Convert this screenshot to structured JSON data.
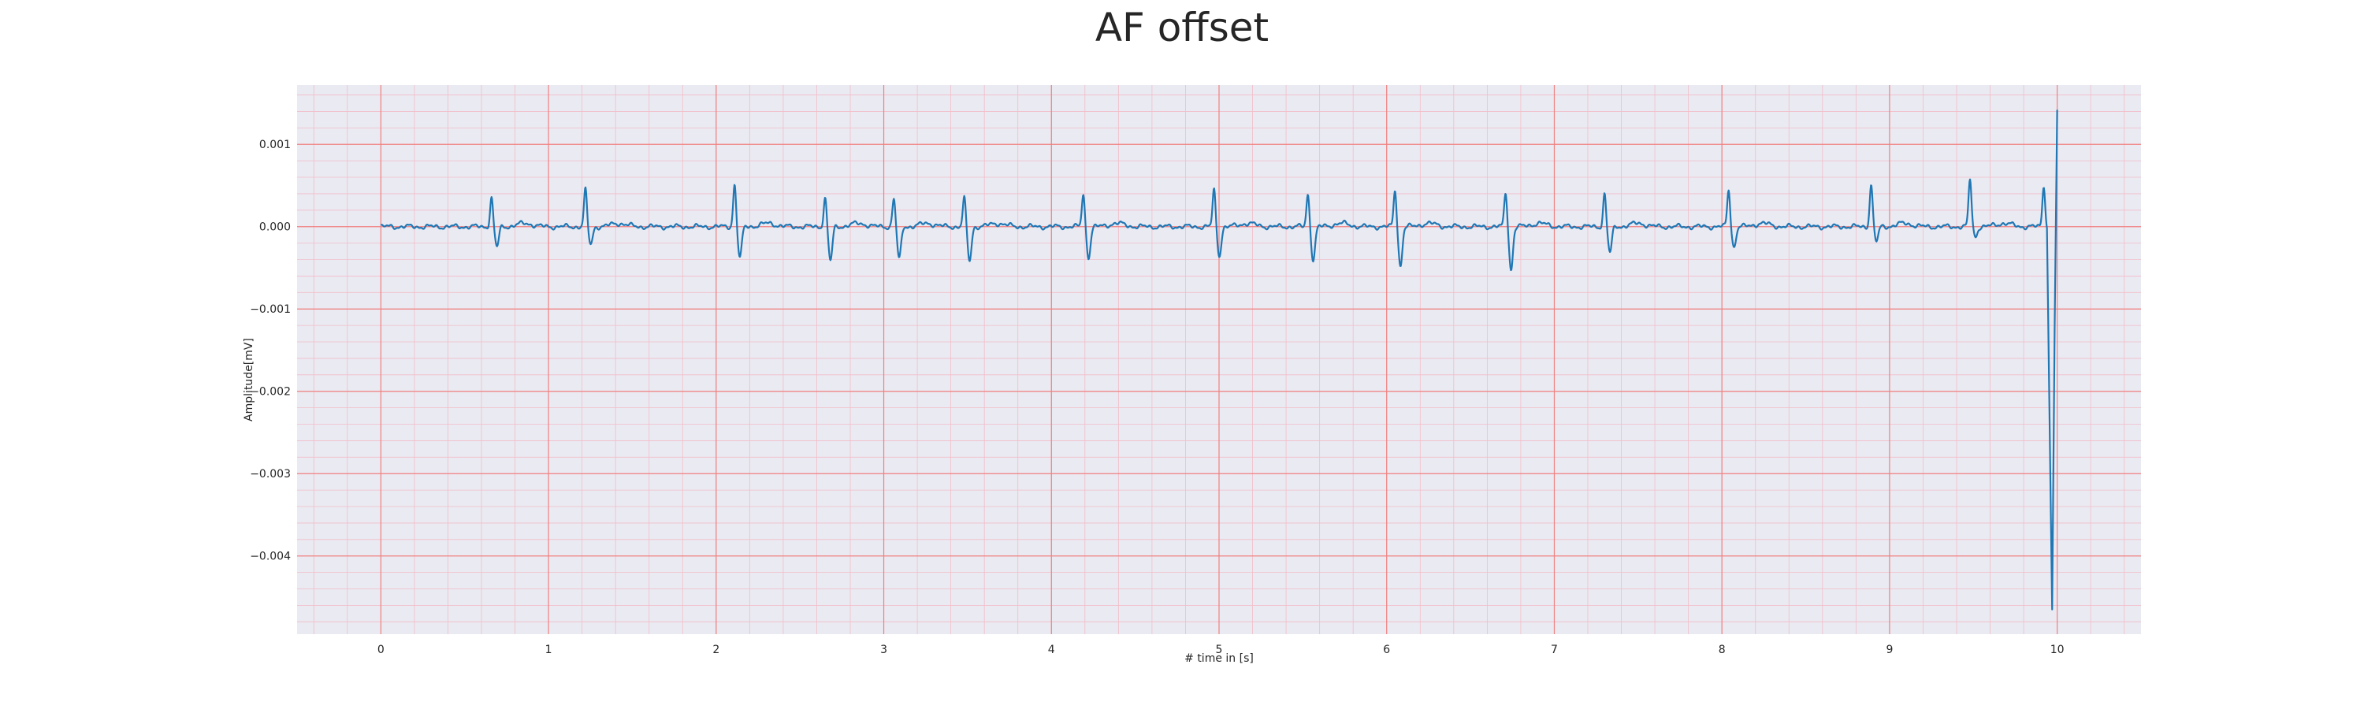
{
  "chart_data": {
    "type": "line",
    "title": "AF offset",
    "xlabel": "# time in [s]",
    "ylabel": "Amplitude[mV]",
    "xlim": [
      -0.5,
      10.5
    ],
    "ylim": [
      -0.00495,
      0.00172
    ],
    "xticks": [
      0,
      1,
      2,
      3,
      4,
      5,
      6,
      7,
      8,
      9,
      10
    ],
    "xtick_labels": [
      "0",
      "1",
      "2",
      "3",
      "4",
      "5",
      "6",
      "7",
      "8",
      "9",
      "10"
    ],
    "yticks": [
      0.001,
      0.0,
      -0.001,
      -0.002,
      -0.003,
      -0.004
    ],
    "ytick_labels": [
      "0.001",
      "0.000",
      "−0.001",
      "−0.002",
      "−0.003",
      "−0.004"
    ],
    "x_minor_step": 0.2,
    "y_minor_step": 0.0002,
    "grid": true,
    "colors": {
      "background": "#eaeaf2",
      "major_grid": "#f08080",
      "minor_grid": "#f2bcc8",
      "line": "#1f77b4",
      "text": "#262626"
    },
    "series": [
      {
        "name": "",
        "beats": [
          {
            "t": 0.66,
            "up": 0.00035,
            "down": -0.00025
          },
          {
            "t": 1.22,
            "up": 0.00045,
            "down": -0.00022
          },
          {
            "t": 2.11,
            "up": 0.00052,
            "down": -0.00038
          },
          {
            "t": 2.65,
            "up": 0.00035,
            "down": -0.00042
          },
          {
            "t": 3.06,
            "up": 0.00035,
            "down": -0.0004
          },
          {
            "t": 3.48,
            "up": 0.00035,
            "down": -0.00042
          },
          {
            "t": 4.19,
            "up": 0.0004,
            "down": -0.00037
          },
          {
            "t": 4.97,
            "up": 0.00045,
            "down": -0.00035
          },
          {
            "t": 5.53,
            "up": 0.0004,
            "down": -0.0004
          },
          {
            "t": 6.05,
            "up": 0.00045,
            "down": -0.00048
          },
          {
            "t": 6.71,
            "up": 0.00042,
            "down": -0.00052
          },
          {
            "t": 7.3,
            "up": 0.0004,
            "down": -0.00032
          },
          {
            "t": 8.04,
            "up": 0.00045,
            "down": -0.00025
          },
          {
            "t": 8.89,
            "up": 0.00052,
            "down": -0.00018
          },
          {
            "t": 9.48,
            "up": 0.00058,
            "down": -0.00012
          },
          {
            "t": 9.92,
            "up": 0.0005,
            "down": -0.0001
          }
        ],
        "final_segment": {
          "x": [
            9.94,
            9.955,
            9.97,
            9.985,
            10.0
          ],
          "y": [
            0.0001,
            -0.0024,
            -0.00465,
            -0.0012,
            0.00142
          ]
        }
      }
    ]
  }
}
